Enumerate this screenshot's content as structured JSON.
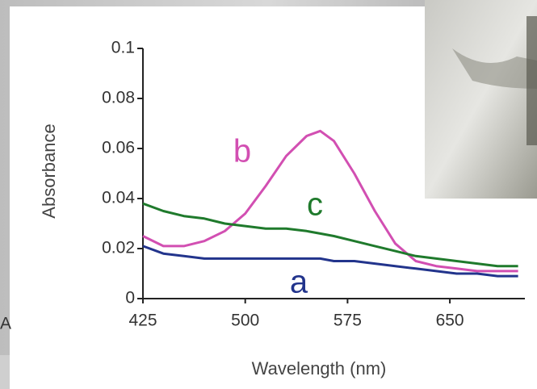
{
  "chart_data": {
    "type": "line",
    "xlabel": "Wavelength (nm)",
    "ylabel": "Absorbance",
    "side_label": "A",
    "x": [
      425,
      440,
      455,
      470,
      485,
      500,
      515,
      530,
      545,
      555,
      565,
      580,
      595,
      610,
      625,
      640,
      655,
      670,
      685,
      700
    ],
    "series": [
      {
        "name": "a",
        "color": "#22348c",
        "values": [
          0.021,
          0.018,
          0.017,
          0.016,
          0.016,
          0.016,
          0.016,
          0.016,
          0.016,
          0.016,
          0.015,
          0.015,
          0.014,
          0.013,
          0.012,
          0.011,
          0.01,
          0.01,
          0.009,
          0.009
        ]
      },
      {
        "name": "b",
        "color": "#d24fb2",
        "values": [
          0.025,
          0.021,
          0.021,
          0.023,
          0.027,
          0.034,
          0.045,
          0.057,
          0.065,
          0.067,
          0.063,
          0.05,
          0.035,
          0.022,
          0.015,
          0.013,
          0.012,
          0.011,
          0.011,
          0.011
        ]
      },
      {
        "name": "c",
        "color": "#1f7a2c",
        "values": [
          0.038,
          0.035,
          0.033,
          0.032,
          0.03,
          0.029,
          0.028,
          0.028,
          0.027,
          0.026,
          0.025,
          0.023,
          0.021,
          0.019,
          0.017,
          0.016,
          0.015,
          0.014,
          0.013,
          0.013
        ]
      }
    ],
    "xlim": [
      425,
      705
    ],
    "xticks": [
      425,
      500,
      575,
      650
    ],
    "ylim": [
      0,
      0.1
    ],
    "yticks": [
      0,
      0.02,
      0.04,
      0.06,
      0.08,
      0.1
    ]
  }
}
